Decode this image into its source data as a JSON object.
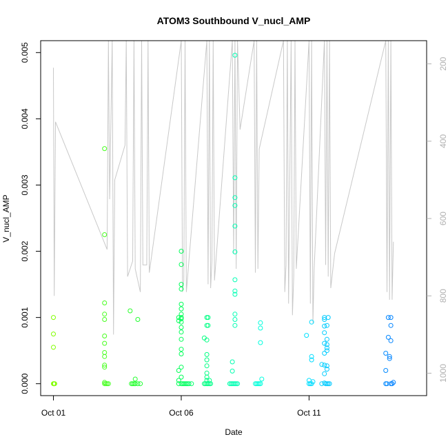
{
  "chart_data": {
    "type": "scatter",
    "title": "ATOM3 Southbound V_nucl_AMP",
    "xlabel": "Date",
    "ylabel": "V_nucl_AMP",
    "x_ticks": [
      "Oct 01",
      "Oct 06",
      "Oct 11"
    ],
    "x_tick_days": [
      1,
      6,
      11
    ],
    "xlim_days": [
      0.5,
      15.6
    ],
    "ylim": [
      -0.00018,
      0.00518
    ],
    "y_ticks": [
      "0.000",
      "0.001",
      "0.002",
      "0.003",
      "0.004",
      "0.005"
    ],
    "y_tick_values": [
      0.0,
      0.001,
      0.002,
      0.003,
      0.004,
      0.005
    ],
    "right_axis": {
      "reversed": true,
      "ylim": [
        1058,
        140
      ],
      "ticks": [
        "200",
        "400",
        "600",
        "800",
        "1000"
      ],
      "tick_values": [
        200,
        400,
        600,
        800,
        1000
      ],
      "color": "#b0b0b0"
    },
    "grid": false,
    "marker": "open-circle",
    "color_scale": [
      "#80ff00",
      "#00ff40",
      "#00ffff",
      "#0080ff"
    ],
    "altitude_trace": [
      [
        1.0,
        210
      ],
      [
        1.03,
        800
      ],
      [
        1.08,
        350
      ],
      [
        3.1,
        680
      ],
      [
        3.15,
        100
      ],
      [
        3.2,
        550
      ],
      [
        3.3,
        100
      ],
      [
        3.35,
        900
      ],
      [
        3.4,
        500
      ],
      [
        3.8,
        410
      ],
      [
        3.85,
        100
      ],
      [
        3.9,
        750
      ],
      [
        4.1,
        710
      ],
      [
        4.15,
        100
      ],
      [
        4.2,
        730
      ],
      [
        4.4,
        790
      ],
      [
        4.45,
        100
      ],
      [
        4.5,
        720
      ],
      [
        4.65,
        720
      ],
      [
        4.7,
        100
      ],
      [
        4.75,
        740
      ],
      [
        6.0,
        100
      ],
      [
        6.05,
        790
      ],
      [
        6.1,
        760
      ],
      [
        6.15,
        100
      ],
      [
        6.2,
        790
      ],
      [
        7.0,
        100
      ],
      [
        7.05,
        770
      ],
      [
        7.1,
        100
      ],
      [
        7.15,
        780
      ],
      [
        7.2,
        710
      ],
      [
        7.25,
        100
      ],
      [
        7.3,
        760
      ],
      [
        8.0,
        110
      ],
      [
        8.05,
        690
      ],
      [
        8.1,
        100
      ],
      [
        8.15,
        730
      ],
      [
        8.2,
        100
      ],
      [
        8.3,
        370
      ],
      [
        8.85,
        100
      ],
      [
        8.9,
        740
      ],
      [
        8.95,
        100
      ],
      [
        9.0,
        730
      ],
      [
        9.05,
        420
      ],
      [
        10.0,
        100
      ],
      [
        10.05,
        790
      ],
      [
        10.1,
        720
      ],
      [
        10.15,
        100
      ],
      [
        10.2,
        820
      ],
      [
        10.3,
        100
      ],
      [
        10.35,
        850
      ],
      [
        10.4,
        750
      ],
      [
        10.45,
        100
      ],
      [
        10.5,
        730
      ],
      [
        11.0,
        100
      ],
      [
        11.05,
        820
      ],
      [
        11.1,
        100
      ],
      [
        11.15,
        870
      ],
      [
        11.2,
        730
      ],
      [
        11.6,
        130
      ],
      [
        11.65,
        720
      ],
      [
        11.7,
        100
      ],
      [
        11.75,
        750
      ],
      [
        11.8,
        100
      ],
      [
        11.85,
        780
      ],
      [
        12.0,
        690
      ],
      [
        14.0,
        100
      ],
      [
        14.05,
        790
      ],
      [
        14.1,
        100
      ],
      [
        14.15,
        810
      ],
      [
        14.2,
        100
      ],
      [
        14.25,
        810
      ],
      [
        14.3,
        660
      ]
    ],
    "points": [
      [
        1.0,
        0.0
      ],
      [
        1.02,
        0.0
      ],
      [
        1.05,
        0.0
      ],
      [
        1.0,
        0.001
      ],
      [
        1.0,
        0.00075
      ],
      [
        1.0,
        0.00055
      ],
      [
        3.0,
        0.00355
      ],
      [
        3.0,
        0.00225
      ],
      [
        3.0,
        0.00122
      ],
      [
        3.0,
        0.00105
      ],
      [
        3.0,
        0.00097
      ],
      [
        3.0,
        0.00072
      ],
      [
        3.0,
        0.00061
      ],
      [
        3.0,
        0.00047
      ],
      [
        3.0,
        0.00041
      ],
      [
        3.0,
        0.00028
      ],
      [
        3.0,
        0.00025
      ],
      [
        3.0,
        2e-05
      ],
      [
        3.0,
        0.0
      ],
      [
        3.05,
        0.0
      ],
      [
        3.1,
        0.0
      ],
      [
        3.15,
        0.0
      ],
      [
        4.0,
        0.0011
      ],
      [
        4.05,
        0.0
      ],
      [
        4.1,
        0.0
      ],
      [
        4.15,
        0.0
      ],
      [
        4.2,
        0.0
      ],
      [
        4.2,
        7e-05
      ],
      [
        4.3,
        0.00097
      ],
      [
        4.3,
        0.0
      ],
      [
        4.4,
        0.0
      ],
      [
        5.9,
        0.001
      ],
      [
        5.9,
        0.00095
      ],
      [
        5.9,
        0.0002
      ],
      [
        5.9,
        5e-05
      ],
      [
        5.9,
        0.0
      ],
      [
        6.0,
        0.002
      ],
      [
        6.0,
        0.0018
      ],
      [
        6.0,
        0.0015
      ],
      [
        6.0,
        0.00143
      ],
      [
        6.0,
        0.0012
      ],
      [
        6.0,
        0.00113
      ],
      [
        6.0,
        0.00105
      ],
      [
        6.0,
        0.001
      ],
      [
        6.0,
        0.00098
      ],
      [
        6.0,
        0.00093
      ],
      [
        6.0,
        0.00085
      ],
      [
        6.0,
        0.00078
      ],
      [
        6.0,
        0.00067
      ],
      [
        6.0,
        0.00052
      ],
      [
        6.0,
        0.00045
      ],
      [
        6.0,
        0.00025
      ],
      [
        6.0,
        0.0001
      ],
      [
        6.0,
        0.0
      ],
      [
        6.05,
        0.0
      ],
      [
        6.1,
        0.0
      ],
      [
        6.15,
        0.0
      ],
      [
        6.2,
        0.0
      ],
      [
        6.25,
        0.0
      ],
      [
        6.3,
        0.0
      ],
      [
        6.4,
        0.0
      ],
      [
        6.9,
        0.00069
      ],
      [
        6.9,
        0.0
      ],
      [
        6.95,
        0.0
      ],
      [
        7.0,
        0.001
      ],
      [
        7.0,
        0.00088
      ],
      [
        7.0,
        0.00066
      ],
      [
        7.0,
        0.00044
      ],
      [
        7.0,
        0.00036
      ],
      [
        7.0,
        0.00027
      ],
      [
        7.0,
        0.00016
      ],
      [
        7.0,
        0.0001
      ],
      [
        7.0,
        5e-05
      ],
      [
        7.0,
        0.0
      ],
      [
        7.05,
        0.0
      ],
      [
        7.05,
        0.001
      ],
      [
        7.05,
        0.00088
      ],
      [
        7.1,
        0.0
      ],
      [
        7.1,
        5e-05
      ],
      [
        7.15,
        0.0
      ],
      [
        7.9,
        0.0
      ],
      [
        7.95,
        0.0
      ],
      [
        8.0,
        0.00033
      ],
      [
        8.0,
        0.00019
      ],
      [
        8.0,
        0.0
      ],
      [
        8.05,
        0.0
      ],
      [
        8.1,
        0.0
      ],
      [
        8.15,
        0.0
      ],
      [
        8.1,
        0.00496
      ],
      [
        8.1,
        0.00311
      ],
      [
        8.1,
        0.00281
      ],
      [
        8.1,
        0.00269
      ],
      [
        8.1,
        0.00238
      ],
      [
        8.1,
        0.00199
      ],
      [
        8.1,
        0.00157
      ],
      [
        8.1,
        0.0014
      ],
      [
        8.1,
        0.00135
      ],
      [
        8.1,
        0.00105
      ],
      [
        8.1,
        0.00097
      ],
      [
        8.1,
        0.00088
      ],
      [
        8.2,
        0.0
      ],
      [
        8.9,
        0.0
      ],
      [
        8.95,
        0.0
      ],
      [
        9.0,
        0.0
      ],
      [
        9.05,
        0.0
      ],
      [
        9.1,
        0.0
      ],
      [
        9.1,
        0.00092
      ],
      [
        9.1,
        0.00084
      ],
      [
        9.1,
        0.00062
      ],
      [
        9.15,
        7e-05
      ],
      [
        10.9,
        0.00073
      ],
      [
        11.0,
        0.0
      ],
      [
        11.0,
        5e-05
      ],
      [
        11.05,
        0.0
      ],
      [
        11.1,
        0.0
      ],
      [
        11.1,
        0.00093
      ],
      [
        11.1,
        0.00041
      ],
      [
        11.1,
        0.00036
      ],
      [
        11.15,
        3e-05
      ],
      [
        11.5,
        0.0
      ],
      [
        11.5,
        0.00029
      ],
      [
        11.6,
        0.001
      ],
      [
        11.6,
        0.00097
      ],
      [
        11.6,
        0.00087
      ],
      [
        11.6,
        0.00077
      ],
      [
        11.6,
        0.00061
      ],
      [
        11.6,
        0.00046
      ],
      [
        11.6,
        0.00028
      ],
      [
        11.6,
        0.00015
      ],
      [
        11.6,
        1e-05
      ],
      [
        11.65,
        0.0
      ],
      [
        11.7,
        0.0
      ],
      [
        11.7,
        0.00088
      ],
      [
        11.7,
        0.00067
      ],
      [
        11.7,
        0.00059
      ],
      [
        11.7,
        0.00054
      ],
      [
        11.7,
        0.0005
      ],
      [
        11.7,
        0.00027
      ],
      [
        11.7,
        0.00022
      ],
      [
        11.75,
        0.0
      ],
      [
        11.8,
        0.0
      ],
      [
        11.75,
        0.001
      ],
      [
        14.0,
        0.00046
      ],
      [
        14.0,
        0.0002
      ],
      [
        14.0,
        0.0
      ],
      [
        14.05,
        0.0
      ],
      [
        14.1,
        0.001
      ],
      [
        14.1,
        0.0007
      ],
      [
        14.15,
        0.00041
      ],
      [
        14.15,
        0.00038
      ],
      [
        14.2,
        0.001
      ],
      [
        14.2,
        0.00088
      ],
      [
        14.2,
        0.00065
      ],
      [
        14.2,
        0.0
      ],
      [
        14.25,
        0.0
      ],
      [
        14.3,
        2e-05
      ]
    ]
  }
}
